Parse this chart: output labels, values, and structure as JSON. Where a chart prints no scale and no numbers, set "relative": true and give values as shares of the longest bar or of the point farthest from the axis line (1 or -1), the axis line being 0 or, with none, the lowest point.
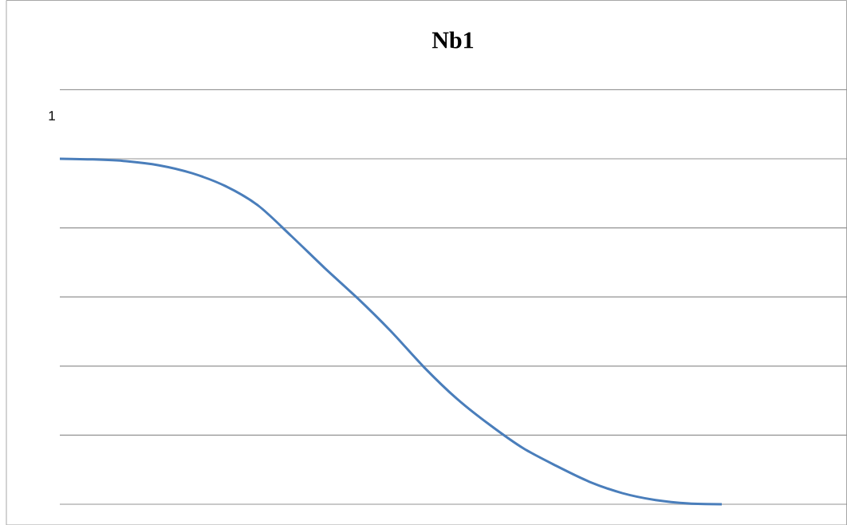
{
  "chart_data": {
    "type": "line",
    "title": "Nb1",
    "relative": true,
    "grid": "y",
    "marker": "none",
    "line_style": "solid",
    "categories": [
      null,
      null,
      null,
      null,
      null,
      null,
      null,
      null,
      null,
      null,
      null,
      null,
      null,
      null,
      null,
      null,
      null,
      null,
      null,
      null,
      null
    ],
    "series": [
      {
        "color": "#4a7ebb",
        "values": [
          1.0,
          0.998,
          0.993,
          0.981,
          0.958,
          0.921,
          0.864,
          0.776,
          0.684,
          0.596,
          0.501,
          0.397,
          0.305,
          0.229,
          0.162,
          0.111,
          0.065,
          0.032,
          0.012,
          0.002,
          0.0
        ]
      }
    ],
    "annotations": [
      "1"
    ]
  }
}
